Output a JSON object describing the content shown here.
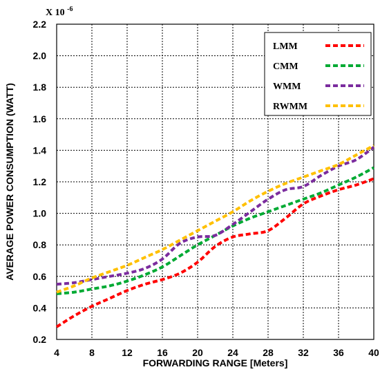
{
  "chart_data": {
    "type": "line",
    "xlabel": "FORWARDING RANGE [Meters]",
    "ylabel": "AVERAGE POWER CONSUMPTION (WATT)",
    "y_multiplier": {
      "base": "X 10",
      "exponent": "-6"
    },
    "xlim": [
      4,
      40
    ],
    "ylim": [
      0.2,
      2.2
    ],
    "x_ticks": [
      "4",
      "8",
      "12",
      "16",
      "20",
      "24",
      "28",
      "32",
      "36",
      "40"
    ],
    "y_ticks": [
      "0.2",
      "0.4",
      "0.6",
      "0.8",
      "1.0",
      "1.2",
      "1.4",
      "1.6",
      "1.8",
      "2.0",
      "2.2"
    ],
    "grid": true,
    "legend_position": "top-right",
    "series": [
      {
        "name": "LMM",
        "color": "#ff0000",
        "x": [
          4,
          6,
          8,
          10,
          12,
          14,
          16,
          18,
          20,
          22,
          24,
          26,
          28,
          30,
          32,
          34,
          36,
          38,
          40
        ],
        "values": [
          0.28,
          0.35,
          0.41,
          0.46,
          0.51,
          0.55,
          0.58,
          0.62,
          0.69,
          0.79,
          0.85,
          0.87,
          0.89,
          0.97,
          1.06,
          1.11,
          1.15,
          1.18,
          1.22
        ]
      },
      {
        "name": "CMM",
        "color": "#00aa33",
        "x": [
          4,
          6,
          8,
          10,
          12,
          14,
          16,
          18,
          20,
          22,
          24,
          26,
          28,
          30,
          32,
          34,
          36,
          38,
          40
        ],
        "values": [
          0.49,
          0.5,
          0.52,
          0.54,
          0.57,
          0.61,
          0.66,
          0.73,
          0.8,
          0.86,
          0.92,
          0.97,
          1.01,
          1.05,
          1.09,
          1.13,
          1.18,
          1.23,
          1.29
        ]
      },
      {
        "name": "WMM",
        "color": "#7b2c9e",
        "x": [
          4,
          6,
          8,
          10,
          12,
          14,
          16,
          18,
          20,
          22,
          24,
          26,
          28,
          30,
          32,
          34,
          36,
          38,
          40
        ],
        "values": [
          0.55,
          0.56,
          0.58,
          0.6,
          0.62,
          0.65,
          0.71,
          0.81,
          0.85,
          0.86,
          0.93,
          1.01,
          1.09,
          1.15,
          1.17,
          1.24,
          1.3,
          1.34,
          1.42
        ]
      },
      {
        "name": "RWMM",
        "color": "#ffc000",
        "x": [
          4,
          6,
          8,
          10,
          12,
          14,
          16,
          18,
          20,
          22,
          24,
          26,
          28,
          30,
          32,
          34,
          36,
          38,
          40
        ],
        "values": [
          0.5,
          0.54,
          0.59,
          0.63,
          0.67,
          0.72,
          0.77,
          0.83,
          0.89,
          0.95,
          1.01,
          1.08,
          1.14,
          1.19,
          1.23,
          1.27,
          1.31,
          1.37,
          1.43
        ]
      }
    ]
  }
}
